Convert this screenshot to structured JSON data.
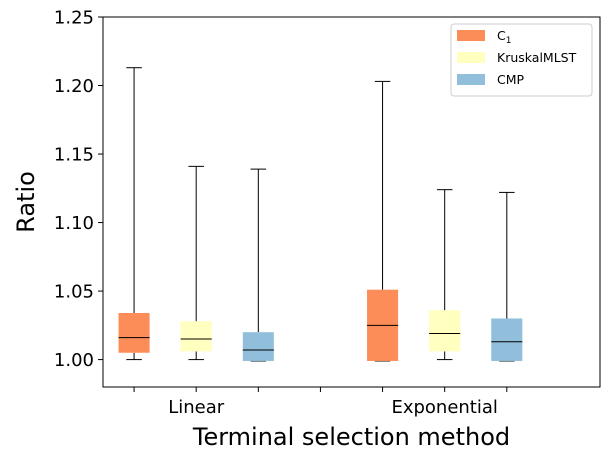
{
  "chart_data": {
    "type": "boxplot",
    "title": "",
    "xlabel": "Terminal selection method",
    "ylabel": "Ratio",
    "ylim": [
      0.98,
      1.25
    ],
    "yticks": [
      1.0,
      1.05,
      1.1,
      1.15,
      1.2,
      1.25
    ],
    "ytick_labels": [
      "1.00",
      "1.05",
      "1.10",
      "1.15",
      "1.20",
      "1.25"
    ],
    "categories": [
      "Linear",
      "Exponential"
    ],
    "legend_position": "top-right",
    "series": [
      {
        "name": "C1",
        "label_main": "C",
        "label_sub": "1",
        "color": "#fc8d59",
        "boxes": [
          {
            "whislo": 1.0,
            "q1": 1.005,
            "med": 1.016,
            "q3": 1.034,
            "whishi": 1.213
          },
          {
            "whislo": 0.999,
            "q1": 0.999,
            "med": 1.025,
            "q3": 1.051,
            "whishi": 1.203
          }
        ]
      },
      {
        "name": "KruskalMLST",
        "label_main": "KruskalMLST",
        "label_sub": "",
        "color": "#ffffbf",
        "boxes": [
          {
            "whislo": 1.0,
            "q1": 1.006,
            "med": 1.015,
            "q3": 1.028,
            "whishi": 1.141
          },
          {
            "whislo": 1.0,
            "q1": 1.006,
            "med": 1.019,
            "q3": 1.036,
            "whishi": 1.124
          }
        ]
      },
      {
        "name": "CMP",
        "label_main": "CMP",
        "label_sub": "",
        "color": "#91bfdb",
        "boxes": [
          {
            "whislo": 0.999,
            "q1": 0.999,
            "med": 1.007,
            "q3": 1.02,
            "whishi": 1.139
          },
          {
            "whislo": 0.999,
            "q1": 0.999,
            "med": 1.013,
            "q3": 1.03,
            "whishi": 1.122
          }
        ]
      }
    ]
  }
}
